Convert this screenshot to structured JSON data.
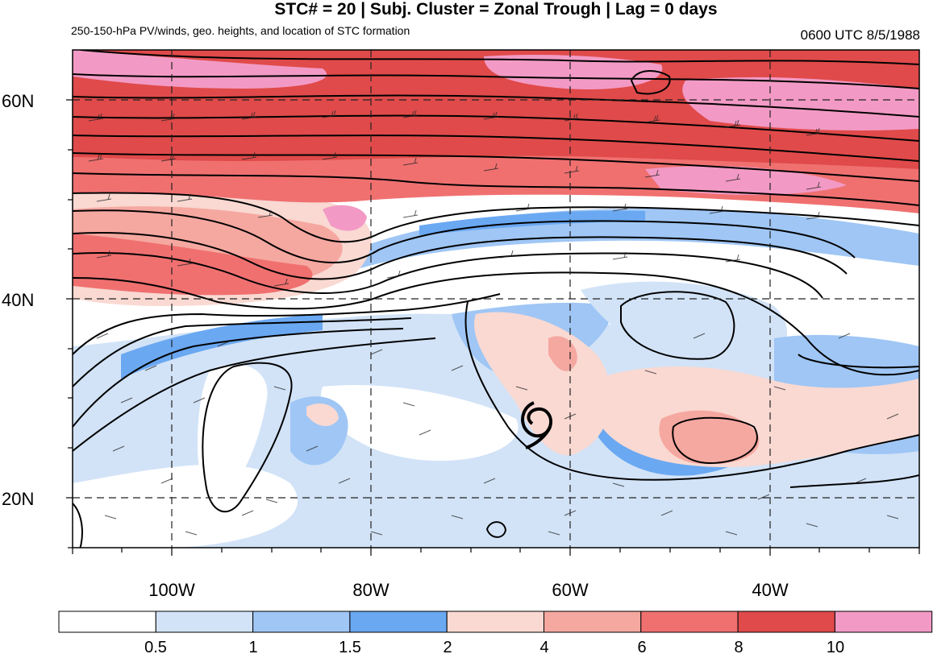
{
  "title": "STC# = 20 | Subj. Cluster = Zonal Trough | Lag = 0 days",
  "subtitle": "250-150-hPa PV/winds, geo. heights, and location of STC formation",
  "timestamp": "0600 UTC  8/5/1988",
  "latitude_labels": [
    "60N",
    "40N",
    "20N"
  ],
  "longitude_labels": [
    "100W",
    "80W",
    "60W",
    "40W"
  ],
  "storm_marker": "tropical-cyclone-symbol",
  "colorbar": {
    "tick_labels": [
      "0.5",
      "1",
      "1.5",
      "2",
      "4",
      "6",
      "8",
      "10"
    ],
    "colors": [
      "#ffffff",
      "#d2e3f7",
      "#9fc6f5",
      "#6aa8f2",
      "#f9d9d2",
      "#f5a8a0",
      "#f07070",
      "#e04a4a",
      "#f29ac5"
    ]
  }
}
